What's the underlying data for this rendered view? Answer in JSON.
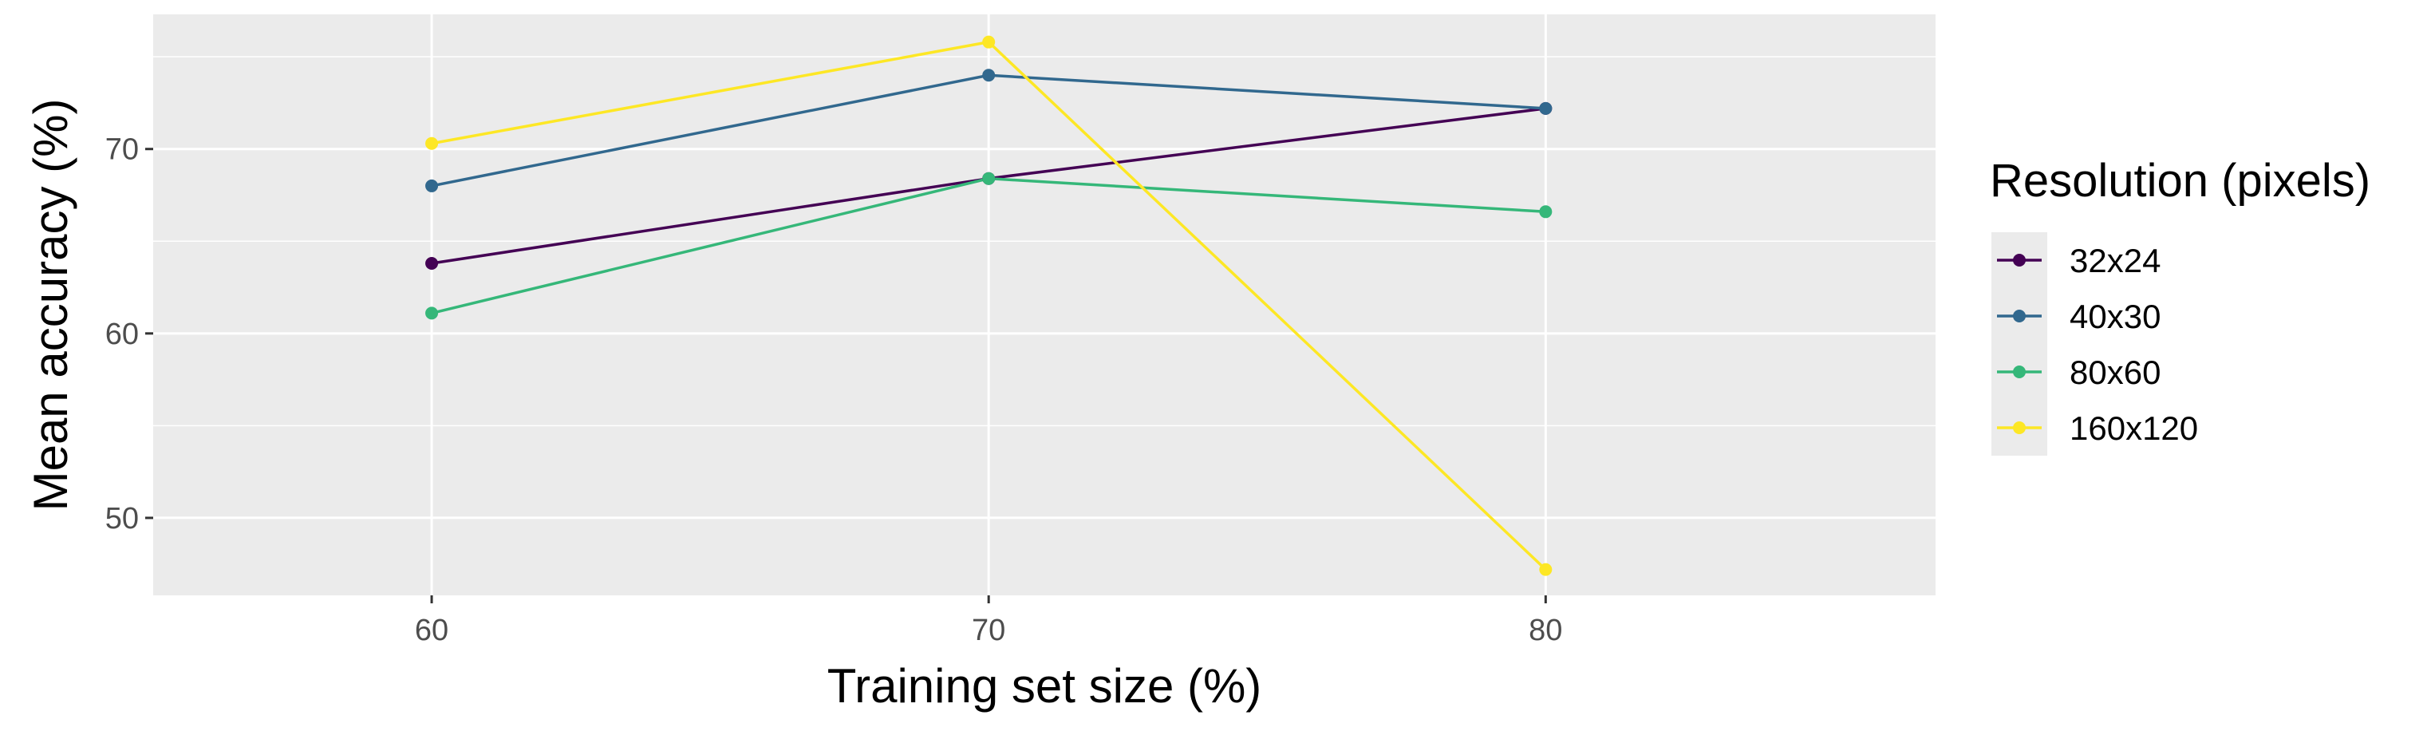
{
  "chart_data": {
    "type": "line",
    "title": "",
    "xlabel": "Training set size (%)",
    "ylabel": "Mean accuracy (%)",
    "x": [
      60,
      70,
      80
    ],
    "xticks": [
      "60",
      "70",
      "80"
    ],
    "yticks": [
      "50",
      "60",
      "70"
    ],
    "xlim": [
      55,
      87
    ],
    "ylim": [
      45.8,
      77.3
    ],
    "grid": true,
    "legend": {
      "title": "Resolution (pixels)",
      "placement": "right"
    },
    "series": [
      {
        "name": "32x24",
        "values": [
          63.8,
          68.4,
          72.2
        ],
        "color": "#440154"
      },
      {
        "name": "40x30",
        "values": [
          68.0,
          74.0,
          72.2
        ],
        "color": "#31688e"
      },
      {
        "name": "80x60",
        "values": [
          61.1,
          68.4,
          66.6
        ],
        "color": "#35b779"
      },
      {
        "name": "160x120",
        "values": [
          70.3,
          75.8,
          47.2
        ],
        "color": "#fde725"
      }
    ]
  }
}
